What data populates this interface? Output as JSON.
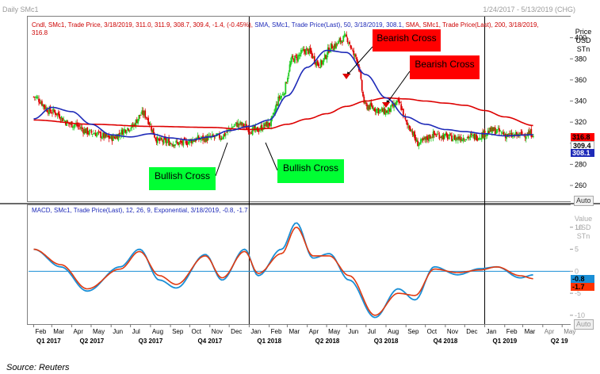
{
  "header": {
    "title": "Daily SMc1",
    "date_range": "1/24/2017 - 5/13/2019 (CHG)"
  },
  "legend": {
    "price_text": "Cndl, SMc1, Trade Price, 3/18/2019, 311.0, 311.9, 308.7, 309.4, -1.4, (-0.45%),",
    "sma50_text": "SMA, SMc1, Trade Price(Last), 50, 3/18/2019, 308.1,",
    "sma200_text": "SMA, SMc1, Trade Price(Last), 200, 3/18/2019, 316.8",
    "macd_text": "MACD, SMc1, Trade Price(Last), 12, 26, 9, Exponential, 3/18/2019, -0.8, -1.7"
  },
  "axes": {
    "price_label": [
      "Price",
      "USD",
      "STn"
    ],
    "macd_label": [
      "Value",
      "USD",
      "STn"
    ],
    "auto_label": "Auto"
  },
  "tags": {
    "sma200": "316.8",
    "close": "309.4",
    "sma50": "308.1",
    "macd_line": "-0.8",
    "macd_signal": "-1.7"
  },
  "annotations": {
    "bearish_1": "Bearish Cross",
    "bearish_2": "Bearish Cross",
    "bullish_1": "Bullish Cross",
    "bullish_2": "Bullish Cross"
  },
  "colors": {
    "up_candle": "#22cc22",
    "down_candle": "#dd0000",
    "sma50": "#1e2ab8",
    "sma200": "#dd0000",
    "macd": "#1a8fd6",
    "signal": "#e03a10",
    "zero_line": "#1a8fd6"
  },
  "source": "Source: Reuters",
  "chart_data": [
    {
      "type": "line",
      "subtype": "candlestick with moving averages",
      "title": "Daily SMc1",
      "ylim": [
        245,
        420
      ],
      "y_ticks": [
        260,
        280,
        300,
        320,
        340,
        360,
        380,
        400
      ],
      "series": [
        {
          "name": "Cndl SMc1 (close)",
          "x": [
            "2017-02-01",
            "2017-03-01",
            "2017-04-01",
            "2017-05-01",
            "2017-06-01",
            "2017-07-01",
            "2017-07-20",
            "2017-08-15",
            "2017-09-15",
            "2017-10-15",
            "2017-11-15",
            "2017-12-15",
            "2018-01-10",
            "2018-01-31",
            "2018-02-20",
            "2018-03-10",
            "2018-03-31",
            "2018-04-20",
            "2018-05-10",
            "2018-05-31",
            "2018-06-15",
            "2018-07-01",
            "2018-08-01",
            "2018-08-20",
            "2018-09-05",
            "2018-09-20",
            "2018-10-15",
            "2018-11-15",
            "2018-12-15",
            "2019-01-15",
            "2019-02-10",
            "2019-03-18"
          ],
          "values": [
            344,
            330,
            318,
            310,
            305,
            315,
            328,
            302,
            300,
            304,
            306,
            318,
            312,
            318,
            345,
            380,
            388,
            375,
            392,
            400,
            382,
            335,
            330,
            338,
            316,
            300,
            308,
            305,
            306,
            312,
            307,
            309.4
          ]
        },
        {
          "name": "SMA 50",
          "x": [
            "2017-02-01",
            "2017-03-01",
            "2017-04-01",
            "2017-05-01",
            "2017-06-01",
            "2017-07-01",
            "2017-08-01",
            "2017-09-01",
            "2017-10-01",
            "2017-11-01",
            "2017-12-01",
            "2018-01-01",
            "2018-02-01",
            "2018-03-01",
            "2018-04-01",
            "2018-05-01",
            "2018-06-01",
            "2018-07-01",
            "2018-08-01",
            "2018-09-01",
            "2018-10-01",
            "2018-11-01",
            "2018-12-01",
            "2019-01-01",
            "2019-02-01",
            "2019-03-18"
          ],
          "values": [
            323,
            334,
            330,
            318,
            308,
            306,
            309,
            305,
            303,
            306,
            312,
            316,
            322,
            345,
            372,
            388,
            386,
            365,
            343,
            325,
            318,
            313,
            311,
            309,
            307,
            308.1
          ]
        },
        {
          "name": "SMA 200",
          "x": [
            "2017-02-01",
            "2017-05-01",
            "2017-08-01",
            "2017-11-01",
            "2018-01-01",
            "2018-02-01",
            "2018-03-01",
            "2018-04-01",
            "2018-05-01",
            "2018-06-01",
            "2018-07-01",
            "2018-08-01",
            "2018-09-01",
            "2018-10-01",
            "2018-11-01",
            "2018-12-01",
            "2019-01-01",
            "2019-02-01",
            "2019-03-18"
          ],
          "values": [
            322,
            318,
            316,
            315,
            313,
            314,
            318,
            323,
            328,
            335,
            340,
            343,
            342,
            340,
            338,
            336,
            331,
            325,
            316.8
          ]
        }
      ]
    },
    {
      "type": "line",
      "title": "MACD",
      "ylim": [
        -12,
        15
      ],
      "y_ticks": [
        -10,
        -5,
        0,
        5,
        10
      ],
      "series": [
        {
          "name": "MACD",
          "x": [
            "2017-02-01",
            "2017-03-15",
            "2017-04-25",
            "2017-06-15",
            "2017-07-15",
            "2017-08-15",
            "2017-09-10",
            "2017-10-25",
            "2017-11-20",
            "2017-12-25",
            "2018-01-15",
            "2018-02-20",
            "2018-03-15",
            "2018-04-10",
            "2018-05-05",
            "2018-06-05",
            "2018-07-15",
            "2018-08-20",
            "2018-09-15",
            "2018-10-15",
            "2018-11-20",
            "2018-12-25",
            "2019-01-20",
            "2019-02-25",
            "2019-03-18"
          ],
          "values": [
            5,
            1,
            -4.5,
            1,
            5,
            -2,
            -3.8,
            3.8,
            -2,
            5,
            -1,
            5,
            11,
            3,
            4,
            -2,
            -10.5,
            -4,
            -6.5,
            1,
            -0.8,
            0.6,
            1,
            -1.5,
            -0.8
          ]
        },
        {
          "name": "Signal",
          "x": [
            "2017-02-01",
            "2017-03-15",
            "2017-04-25",
            "2017-06-15",
            "2017-07-15",
            "2017-08-15",
            "2017-09-10",
            "2017-10-25",
            "2017-11-20",
            "2017-12-25",
            "2018-01-15",
            "2018-02-20",
            "2018-03-15",
            "2018-04-10",
            "2018-05-05",
            "2018-06-05",
            "2018-07-15",
            "2018-08-20",
            "2018-09-15",
            "2018-10-15",
            "2018-11-20",
            "2018-12-25",
            "2019-01-20",
            "2019-02-25",
            "2019-03-18"
          ],
          "values": [
            5,
            1.5,
            -4,
            0.5,
            4.5,
            -1,
            -3,
            3.5,
            -1.5,
            4.5,
            -0.5,
            4,
            10,
            3.5,
            3.5,
            -1,
            -10,
            -5,
            -5.5,
            0.5,
            -0.3,
            0.3,
            1,
            -1,
            -1.7
          ]
        }
      ]
    }
  ],
  "x_axis": {
    "months": [
      "Feb",
      "Mar",
      "Apr",
      "May",
      "Jun",
      "Jul",
      "Aug",
      "Sep",
      "Oct",
      "Nov",
      "Dec",
      "Jan",
      "Feb",
      "Mar",
      "Apr",
      "May",
      "Jun",
      "Jul",
      "Aug",
      "Sep",
      "Oct",
      "Nov",
      "Dec",
      "Jan",
      "Feb",
      "Mar",
      "Apr",
      "May"
    ],
    "quarters": [
      "Q1 2017",
      "Q2 2017",
      "Q3 2017",
      "Q4 2017",
      "Q1 2018",
      "Q2 2018",
      "Q3 2018",
      "Q4 2018",
      "Q1 2019",
      "Q2 19"
    ]
  }
}
